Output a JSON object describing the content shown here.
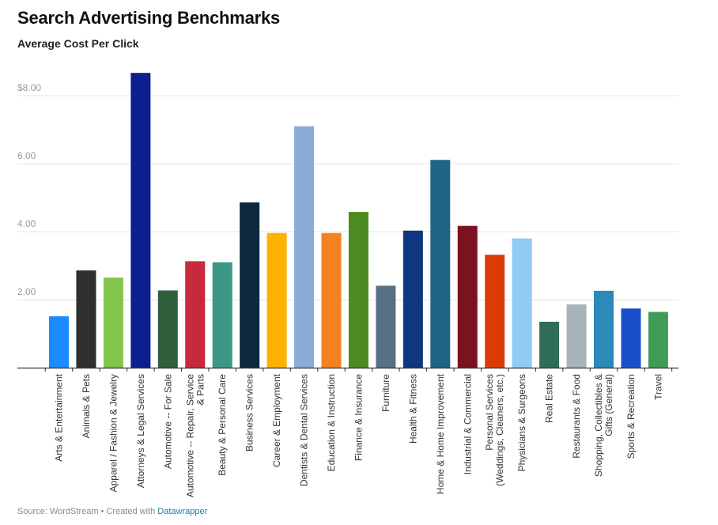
{
  "header": {
    "title": "Search Advertising Benchmarks",
    "subtitle": "Average Cost Per Click"
  },
  "footer": {
    "source": "Source: WordStream • Created with ",
    "credit_link": "Datawrapper"
  },
  "chart_data": {
    "type": "bar",
    "title": "Search Advertising Benchmarks",
    "subtitle": "Average Cost Per Click",
    "xlabel": "",
    "ylabel": "",
    "ylim": [
      0,
      8.0
    ],
    "yticks": [
      {
        "value": 2.0,
        "label": "2.00"
      },
      {
        "value": 4.0,
        "label": "4.00"
      },
      {
        "value": 6.0,
        "label": "6.00"
      },
      {
        "value": 8.0,
        "label": "$8.00"
      }
    ],
    "grid": true,
    "legend": "none",
    "categories": [
      "Arts & Entertainment",
      "Animals & Pets",
      "Apparel / Fashion & Jewelry",
      "Attorneys & Legal Services",
      "Automotive -- For Sale",
      "Automotive -- Repair, Service & Parts",
      "Beauty & Personal Care",
      "Business Services",
      "Career & Employment",
      "Dentists & Dental Services",
      "Education & Instruction",
      "Finance & Insurance",
      "Furniture",
      "Health & Fitness",
      "Home & Home Improvement",
      "Industrial & Commercial",
      "Personal Services (Weddings, Cleaners, etc.)",
      "Physicians & Surgeons",
      "Real Estate",
      "Restaurants & Food",
      "Shopping, Collectibles & Gifts (General)",
      "Sports & Recreation",
      "Travel"
    ],
    "label_lines": [
      [
        "Arts & Entertainment"
      ],
      [
        "Animals & Pets"
      ],
      [
        "Apparel / Fashion & Jewelry"
      ],
      [
        "Attorneys & Legal Services"
      ],
      [
        "Automotive -- For Sale"
      ],
      [
        "Automotive -- Repair, Service",
        "& Parts"
      ],
      [
        "Beauty & Personal Care"
      ],
      [
        "Business Services"
      ],
      [
        "Career & Employment"
      ],
      [
        "Dentists & Dental Services"
      ],
      [
        "Education & Instruction"
      ],
      [
        "Finance & Insurance"
      ],
      [
        "Furniture"
      ],
      [
        "Health & Fitness"
      ],
      [
        "Home & Home Improvement"
      ],
      [
        "Industrial & Commercial"
      ],
      [
        "Personal Services",
        "(Weddings, Cleaners, etc.)"
      ],
      [
        "Physicians & Surgeons"
      ],
      [
        "Real Estate"
      ],
      [
        "Restaurants & Food"
      ],
      [
        "Shopping, Collectibles &",
        "Gifts (General)"
      ],
      [
        "Sports & Recreation"
      ],
      [
        "Travel"
      ]
    ],
    "values": [
      1.51,
      2.86,
      2.65,
      8.67,
      2.27,
      3.13,
      3.1,
      4.86,
      3.96,
      7.1,
      3.96,
      4.58,
      2.41,
      4.03,
      6.11,
      4.17,
      3.32,
      3.8,
      1.35,
      1.86,
      2.26,
      1.74,
      1.64
    ],
    "colors": [
      "#1a8cff",
      "#2f2f2f",
      "#83c54a",
      "#0b1f8f",
      "#305f3c",
      "#c72a3c",
      "#3c9784",
      "#0c2940",
      "#fdb100",
      "#8aaad8",
      "#f58220",
      "#4b8b20",
      "#577082",
      "#0f3680",
      "#1e6683",
      "#7a1221",
      "#db3b07",
      "#8fcbf2",
      "#2f6d5a",
      "#a8b3b9",
      "#2a8ab8",
      "#1a4fcb",
      "#3f9c58"
    ]
  }
}
